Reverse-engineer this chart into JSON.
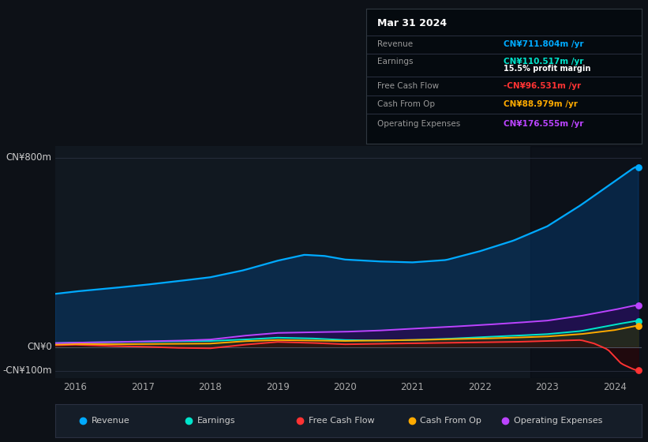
{
  "background_color": "#0d1117",
  "panel_color": "#111820",
  "title": "Mar 31 2024",
  "colors": {
    "revenue": "#00aaff",
    "earnings": "#00e5cc",
    "free_cash_flow": "#ff3333",
    "cash_from_op": "#ffaa00",
    "operating_expenses": "#bb44ff"
  },
  "info_box": {
    "date": "Mar 31 2024",
    "revenue_label": "Revenue",
    "revenue_value": "CN¥711.804m /yr",
    "earnings_label": "Earnings",
    "earnings_value": "CN¥110.517m /yr",
    "profit_margin": "15.5% profit margin",
    "fcf_label": "Free Cash Flow",
    "fcf_value": "-CN¥96.531m /yr",
    "cfop_label": "Cash From Op",
    "cfop_value": "CN¥88.979m /yr",
    "opex_label": "Operating Expenses",
    "opex_value": "CN¥176.555m /yr"
  },
  "legend_labels": [
    "Revenue",
    "Earnings",
    "Free Cash Flow",
    "Cash From Op",
    "Operating Expenses"
  ],
  "ylim": [
    -130,
    850
  ],
  "xlim": [
    2015.7,
    2024.4
  ],
  "ytick_labels": [
    "CN¥800m",
    "CN¥0",
    "-CN¥100m"
  ],
  "ytick_vals": [
    800,
    0,
    -100
  ],
  "xtick_labels": [
    "2016",
    "2017",
    "2018",
    "2019",
    "2020",
    "2021",
    "2022",
    "2023",
    "2024"
  ],
  "xtick_vals": [
    2016,
    2017,
    2018,
    2019,
    2020,
    2021,
    2022,
    2023,
    2024
  ]
}
